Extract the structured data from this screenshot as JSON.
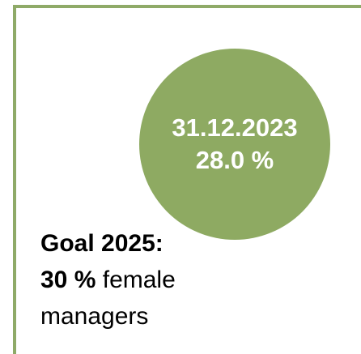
{
  "badge": {
    "date": "31.12.2023",
    "value": "28.0 %"
  },
  "goal": {
    "heading": "Goal 2025:",
    "target": "30 %",
    "line2_rest": "female",
    "line3": "managers"
  }
}
